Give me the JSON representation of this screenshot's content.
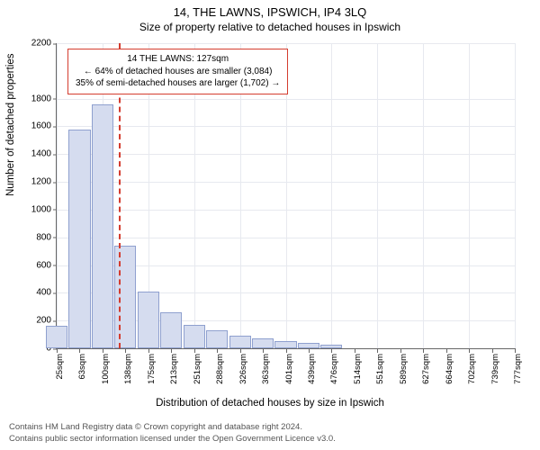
{
  "chart": {
    "type": "histogram",
    "title": "14, THE LAWNS, IPSWICH, IP4 3LQ",
    "subtitle": "Size of property relative to detached houses in Ipswich",
    "ylabel": "Number of detached properties",
    "xlabel": "Distribution of detached houses by size in Ipswich",
    "background_color": "#ffffff",
    "grid_color": "#e7e9ef",
    "bar_fill": "#d5dcef",
    "bar_stroke": "#8fa0cf",
    "axis_color": "#666666",
    "marker_color": "#d43c2f",
    "ylim": [
      0,
      2200
    ],
    "yticks": [
      0,
      200,
      400,
      600,
      800,
      1000,
      1200,
      1400,
      1600,
      1800,
      2200
    ],
    "xlim_index": [
      0,
      21
    ],
    "xticks": [
      "25sqm",
      "63sqm",
      "100sqm",
      "138sqm",
      "175sqm",
      "213sqm",
      "251sqm",
      "288sqm",
      "326sqm",
      "363sqm",
      "401sqm",
      "439sqm",
      "476sqm",
      "514sqm",
      "551sqm",
      "589sqm",
      "627sqm",
      "664sqm",
      "702sqm",
      "739sqm",
      "777sqm"
    ],
    "n_x_major_gridlines": 11,
    "bar_values": [
      160,
      1580,
      1760,
      740,
      410,
      260,
      170,
      130,
      90,
      70,
      50,
      40,
      25,
      0,
      0,
      0,
      0,
      0,
      0,
      0,
      0
    ],
    "marker_value_sqm": 127,
    "annotation": {
      "line1": "14 THE LAWNS: 127sqm",
      "line2": "← 64% of detached houses are smaller (3,084)",
      "line3": "35% of semi-detached houses are larger (1,702) →"
    },
    "title_fontsize": 13,
    "subtitle_fontsize": 12,
    "label_fontsize": 11.5,
    "tick_fontsize": 10,
    "attribution_line1": "Contains HM Land Registry data © Crown copyright and database right 2024.",
    "attribution_line2": "Contains public sector information licensed under the Open Government Licence v3.0."
  }
}
